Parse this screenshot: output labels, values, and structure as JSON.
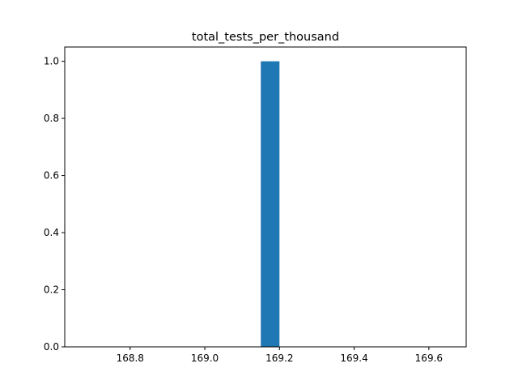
{
  "chart_data": {
    "type": "bar",
    "title": "total_tests_per_thousand",
    "xlabel": "",
    "ylabel": "",
    "xlim": [
      168.625,
      169.7
    ],
    "ylim": [
      0,
      1.05
    ],
    "x_ticks": [
      168.8,
      169.0,
      169.2,
      169.4,
      169.6
    ],
    "x_tick_labels": [
      "168.8",
      "169.0",
      "169.2",
      "169.4",
      "169.6"
    ],
    "y_ticks": [
      0.0,
      0.2,
      0.4,
      0.6,
      0.8,
      1.0
    ],
    "y_tick_labels": [
      "0.0",
      "0.2",
      "0.4",
      "0.6",
      "0.8",
      "1.0"
    ],
    "bars": [
      {
        "x_start": 169.15,
        "x_end": 169.2,
        "value": 1
      }
    ],
    "bar_color": "#1f77b4",
    "grid": false,
    "legend": "none"
  }
}
